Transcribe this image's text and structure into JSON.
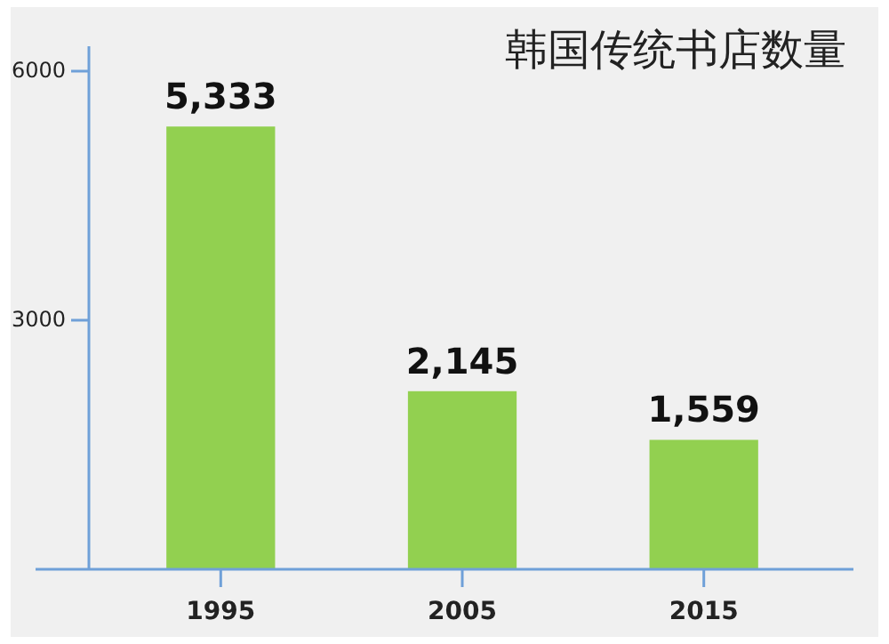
{
  "chart_data": {
    "type": "bar",
    "title": "韩国传统书店数量",
    "categories": [
      "1995",
      "2005",
      "2015"
    ],
    "values": [
      5333,
      2145,
      1559
    ],
    "value_labels": [
      "5,333",
      "2,145",
      "1,559"
    ],
    "color": "#92d050",
    "ylim": [
      0,
      6300
    ],
    "yticks": [
      3000,
      6000
    ],
    "grid": false
  }
}
